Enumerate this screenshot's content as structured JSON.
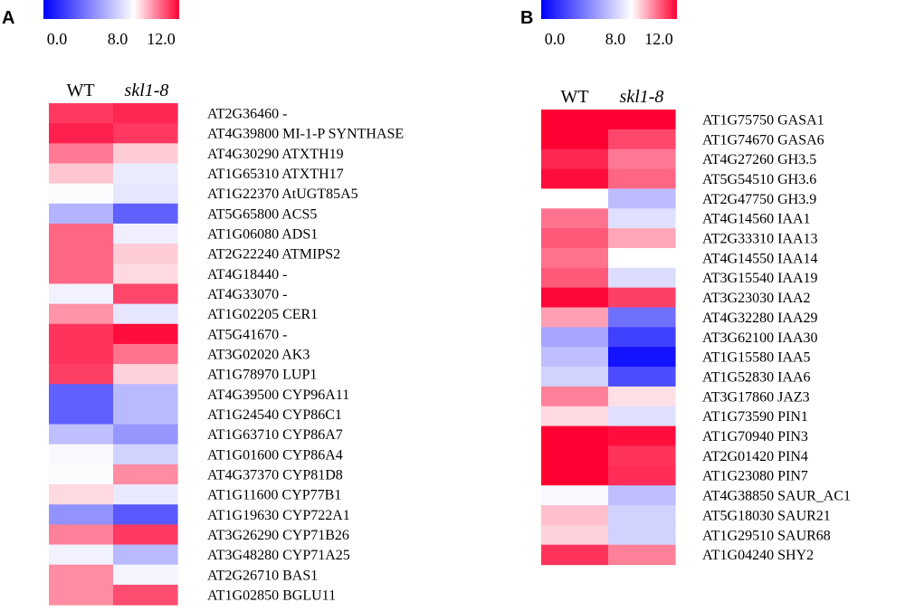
{
  "chart_data": [
    {
      "type": "heatmap",
      "panel": "A",
      "columns": [
        "WT",
        "skl1-8"
      ],
      "colorscale": {
        "ticks": [
          "0.0",
          "8.0",
          "12.0"
        ],
        "min": 0,
        "mid": 8,
        "max": 12,
        "low_color": "#0000ff",
        "mid_color": "#ffffff",
        "high_color": "#ff0033"
      },
      "rows": [
        {
          "label": "AT2G36460 -",
          "values": [
            11.1,
            11.4
          ]
        },
        {
          "label": "AT4G39800 MI-1-P SYNTHASE",
          "values": [
            11.5,
            11.1
          ]
        },
        {
          "label": "AT4G30290 ATXTH19",
          "values": [
            10.1,
            8.8
          ]
        },
        {
          "label": "AT1G65310 ATXTH17",
          "values": [
            8.9,
            7.4
          ]
        },
        {
          "label": "AT1G22370 AtUGT85A5",
          "values": [
            7.9,
            7.2
          ]
        },
        {
          "label": "AT5G65800 ACS5",
          "values": [
            5.6,
            3.0
          ]
        },
        {
          "label": "AT1G06080 ADS1",
          "values": [
            10.4,
            7.5
          ]
        },
        {
          "label": "AT2G22240 ATMIPS2",
          "values": [
            10.4,
            8.8
          ]
        },
        {
          "label": "AT4G18440 -",
          "values": [
            10.4,
            8.6
          ]
        },
        {
          "label": "AT4G33070 -",
          "values": [
            7.6,
            10.9
          ]
        },
        {
          "label": "AT1G02205 CER1",
          "values": [
            9.7,
            7.2
          ]
        },
        {
          "label": "AT5G41670 -",
          "values": [
            11.2,
            11.8
          ]
        },
        {
          "label": "AT3G02020 AK3",
          "values": [
            11.2,
            10.2
          ]
        },
        {
          "label": "AT1G78970 LUP1",
          "values": [
            11.0,
            8.7
          ]
        },
        {
          "label": "AT4G39500 CYP96A11",
          "values": [
            3.0,
            5.8
          ]
        },
        {
          "label": "AT1G24540 CYP86C1",
          "values": [
            3.0,
            5.8
          ]
        },
        {
          "label": "AT1G63710 CYP86A7",
          "values": [
            6.0,
            4.7
          ]
        },
        {
          "label": "AT1G01600 CYP86A4",
          "values": [
            7.8,
            6.6
          ]
        },
        {
          "label": "AT4G37370 CYP81D8",
          "values": [
            7.9,
            9.8
          ]
        },
        {
          "label": "AT1G11600 CYP77B1",
          "values": [
            8.6,
            7.3
          ]
        },
        {
          "label": "AT1G19630 CYP722A1",
          "values": [
            4.6,
            2.8
          ]
        },
        {
          "label": "AT3G26290 CYP71B26",
          "values": [
            10.0,
            11.1
          ]
        },
        {
          "label": "AT3G48280 CYP71A25",
          "values": [
            7.6,
            5.8
          ]
        },
        {
          "label": "AT2G26710 BAS1",
          "values": [
            9.8,
            7.7
          ]
        },
        {
          "label": "AT1G02850 BGLU11",
          "values": [
            9.8,
            10.8
          ]
        }
      ]
    },
    {
      "type": "heatmap",
      "panel": "B",
      "columns": [
        "WT",
        "skl1-8"
      ],
      "colorscale": {
        "ticks": [
          "0.0",
          "8.0",
          "12.0"
        ],
        "min": 0,
        "mid": 8,
        "max": 12,
        "low_color": "#0000ff",
        "mid_color": "#ffffff",
        "high_color": "#ff0033"
      },
      "rows": [
        {
          "label": "AT1G75750 GASA1",
          "values": [
            12.0,
            12.0
          ]
        },
        {
          "label": "AT1G74670 GASA6",
          "values": [
            12.0,
            10.9
          ]
        },
        {
          "label": "AT4G27260 GH3.5",
          "values": [
            11.4,
            10.1
          ]
        },
        {
          "label": "AT5G54510 GH3.6",
          "values": [
            11.8,
            10.4
          ]
        },
        {
          "label": "AT2G47750 GH3.9",
          "values": [
            8.0,
            5.9
          ]
        },
        {
          "label": "AT4G14560 IAA1",
          "values": [
            10.2,
            7.0
          ]
        },
        {
          "label": "AT2G33310 IAA13",
          "values": [
            10.6,
            9.4
          ]
        },
        {
          "label": "AT4G14550 IAA14",
          "values": [
            10.2,
            8.0
          ]
        },
        {
          "label": "AT3G15540 IAA19",
          "values": [
            10.6,
            6.9
          ]
        },
        {
          "label": "AT3G23030 IAA2",
          "values": [
            11.9,
            11.0
          ]
        },
        {
          "label": "AT4G32280 IAA29",
          "values": [
            9.5,
            3.5
          ]
        },
        {
          "label": "AT3G62100 IAA30",
          "values": [
            5.2,
            2.0
          ]
        },
        {
          "label": "AT1G15580 IAA5",
          "values": [
            6.0,
            0.6
          ]
        },
        {
          "label": "AT1G52830 IAA6",
          "values": [
            6.6,
            2.4
          ]
        },
        {
          "label": "AT3G17860 JAZ3",
          "values": [
            10.0,
            8.5
          ]
        },
        {
          "label": "AT1G73590 PIN1",
          "values": [
            8.6,
            7.0
          ]
        },
        {
          "label": "AT1G70940 PIN3",
          "values": [
            12.0,
            11.8
          ]
        },
        {
          "label": "AT2G01420 PIN4",
          "values": [
            12.0,
            11.2
          ]
        },
        {
          "label": "AT1G23080 PIN7",
          "values": [
            12.0,
            11.3
          ]
        },
        {
          "label": "AT4G38850 SAUR_AC1",
          "values": [
            7.8,
            6.0
          ]
        },
        {
          "label": "AT5G18030 SAUR21",
          "values": [
            9.0,
            6.6
          ]
        },
        {
          "label": "AT1G29510 SAUR68",
          "values": [
            8.7,
            6.6
          ]
        },
        {
          "label": "AT1G04240 SHY2",
          "values": [
            11.2,
            10.0
          ]
        }
      ]
    }
  ]
}
